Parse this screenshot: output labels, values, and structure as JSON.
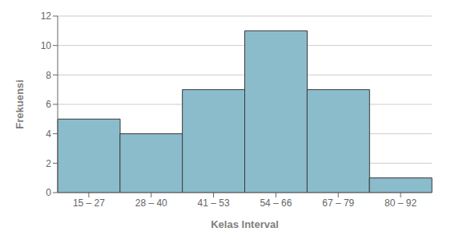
{
  "chart_data": {
    "type": "bar",
    "categories": [
      "15 – 27",
      "28 – 40",
      "41 – 53",
      "54 – 66",
      "67 – 79",
      "80 – 92"
    ],
    "values": [
      5,
      4,
      7,
      11,
      7,
      1
    ],
    "color": "#8BBCCC",
    "xlabel": "Kelas Interval",
    "ylabel": "Frekuensi",
    "ylim": [
      0,
      12
    ],
    "yticks": [
      0,
      2,
      4,
      6,
      8,
      10,
      12
    ],
    "grid": true
  }
}
